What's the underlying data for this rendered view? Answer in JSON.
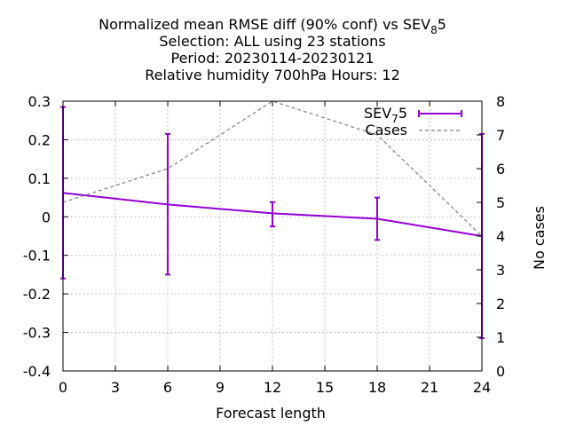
{
  "chart_data": {
    "type": "line",
    "title_lines": [
      [
        "Normalized mean RMSE diff (90% conf) vs SEV",
        "8",
        "5"
      ],
      [
        "Selection: ALL using    23 stations",
        "",
        ""
      ],
      [
        "Period: 20230114-20230121",
        "",
        ""
      ],
      [
        "Relative humidity 700hPa   Hours:  12",
        "",
        ""
      ]
    ],
    "xlabel": "Forecast length",
    "ylabel": "",
    "y2label": "No cases",
    "xlim": [
      0,
      24
    ],
    "ylim": [
      -0.4,
      0.3
    ],
    "y2lim": [
      0,
      8
    ],
    "xticks": [
      0,
      3,
      6,
      9,
      12,
      15,
      18,
      21,
      24
    ],
    "yticks": [
      "0.3",
      "0.2",
      "0.1",
      "0",
      "-0.1",
      "-0.2",
      "-0.3",
      "-0.4"
    ],
    "y2ticks": [
      "8",
      "7",
      "6",
      "5",
      "4",
      "3",
      "2",
      "1",
      "0"
    ],
    "grid": true,
    "legend_position": "top-right",
    "series": [
      {
        "name": "SEV75",
        "legend_parts": [
          "SEV",
          "7",
          "5"
        ],
        "axis": "y",
        "color": "#9400d3",
        "style": "solid-errorbars",
        "x": [
          0,
          6,
          12,
          18,
          24
        ],
        "values": [
          0.062,
          0.032,
          0.009,
          -0.005,
          -0.05
        ],
        "err_low": [
          -0.16,
          -0.15,
          -0.025,
          -0.06,
          -0.315
        ],
        "err_high": [
          0.285,
          0.215,
          0.038,
          0.05,
          0.215
        ]
      },
      {
        "name": "Cases",
        "legend_parts": [
          "Cases",
          "",
          ""
        ],
        "axis": "y2",
        "color": "#808080",
        "style": "dashed",
        "x": [
          0,
          6,
          12,
          18,
          24
        ],
        "values": [
          5,
          6,
          8,
          7,
          4
        ]
      }
    ]
  }
}
